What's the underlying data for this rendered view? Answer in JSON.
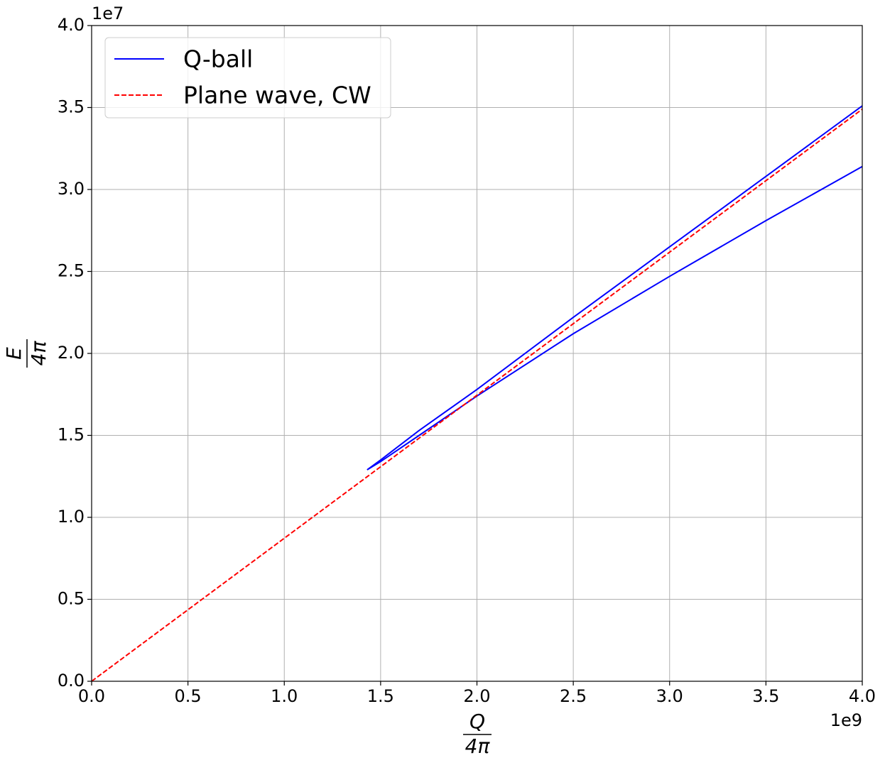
{
  "chart_data": {
    "type": "line",
    "x_label": {
      "numerator": "Q",
      "denominator": "4π"
    },
    "y_label": {
      "numerator": "E",
      "denominator": "4π"
    },
    "x_offset_label": "1e9",
    "y_offset_label": "1e7",
    "xlim": [
      0,
      4
    ],
    "ylim": [
      0,
      4
    ],
    "xticks": [
      {
        "value": 0,
        "label": "0.0"
      },
      0.5,
      {
        "value": 1,
        "label": "1.0"
      },
      1.5,
      {
        "value": 2,
        "label": "2.0"
      },
      2.5,
      {
        "value": 3,
        "label": "3.0"
      },
      3.5,
      {
        "value": 4,
        "label": "4.0"
      }
    ],
    "yticks": [
      {
        "value": 0,
        "label": "0.0"
      },
      0.5,
      {
        "value": 1,
        "label": "1.0"
      },
      1.5,
      {
        "value": 2,
        "label": "2.0"
      },
      2.5,
      {
        "value": 3,
        "label": "3.0"
      },
      3.5,
      {
        "value": 4,
        "label": "4.0"
      }
    ],
    "grid": true,
    "legend": "upper-left",
    "series": [
      {
        "name": "Q-ball",
        "color": "#0000ff",
        "dash": false,
        "x": [
          4.0,
          3.5,
          3.0,
          2.5,
          2.0,
          1.7,
          1.5,
          1.43,
          1.5,
          1.7,
          2.0,
          2.5,
          3.0,
          3.5,
          4.0
        ],
        "values": [
          3.51,
          3.08,
          2.65,
          2.22,
          1.78,
          1.53,
          1.35,
          1.29,
          1.34,
          1.5,
          1.74,
          2.12,
          2.47,
          2.81,
          3.14
        ]
      },
      {
        "name": "Plane wave, CW",
        "color": "#ff0000",
        "dash": true,
        "x": [
          0,
          4
        ],
        "values": [
          0,
          3.49
        ]
      }
    ]
  }
}
